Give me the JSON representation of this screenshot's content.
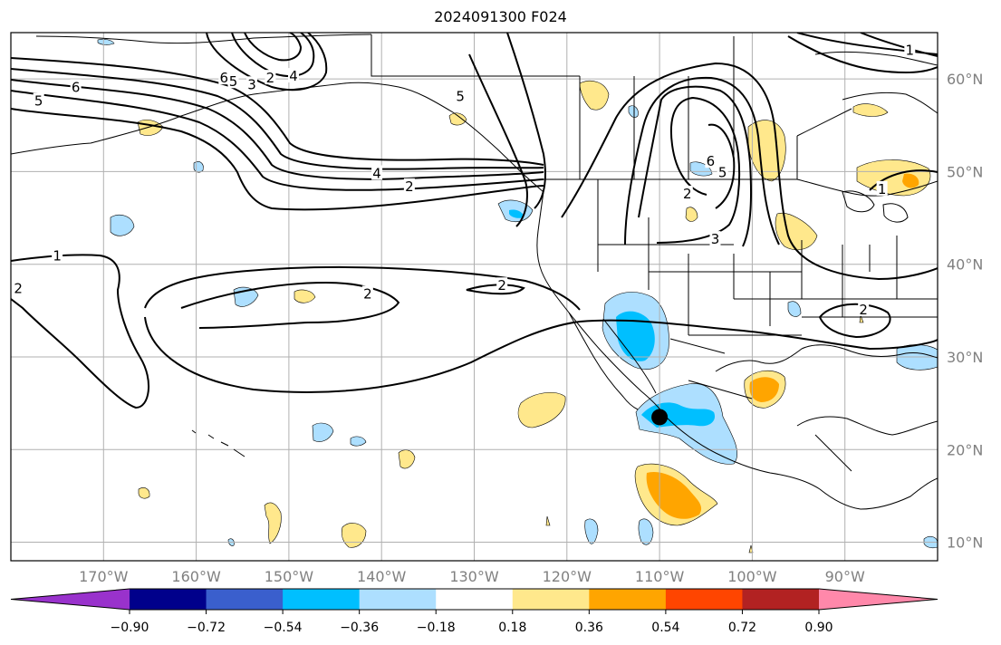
{
  "title": "2024091300 F024",
  "map": {
    "lon_range": [
      -180,
      -80
    ],
    "lat_range": [
      8,
      65
    ],
    "lon_ticks": [
      {
        "lon": -170,
        "label": "170°W"
      },
      {
        "lon": -160,
        "label": "160°W"
      },
      {
        "lon": -150,
        "label": "150°W"
      },
      {
        "lon": -140,
        "label": "140°W"
      },
      {
        "lon": -130,
        "label": "130°W"
      },
      {
        "lon": -120,
        "label": "120°W"
      },
      {
        "lon": -110,
        "label": "110°W"
      },
      {
        "lon": -100,
        "label": "100°W"
      },
      {
        "lon": -90,
        "label": "90°W"
      }
    ],
    "lat_ticks": [
      {
        "lat": 60,
        "label": "60°N"
      },
      {
        "lat": 50,
        "label": "50°N"
      },
      {
        "lat": 40,
        "label": "40°N"
      },
      {
        "lat": 30,
        "label": "30°N"
      },
      {
        "lat": 20,
        "label": "20°N"
      },
      {
        "lat": 10,
        "label": "10°N"
      }
    ],
    "grid": true,
    "marker": {
      "name": "storm-center-marker",
      "lon": -110,
      "lat": 23.5,
      "color": "#000000"
    }
  },
  "contour_labels": [
    {
      "text": "5",
      "lon": -177,
      "lat": 57.5
    },
    {
      "text": "6",
      "lon": -173,
      "lat": 59
    },
    {
      "text": "6",
      "lon": -157,
      "lat": 60
    },
    {
      "text": "5",
      "lon": -156,
      "lat": 59.6
    },
    {
      "text": "3",
      "lon": -154,
      "lat": 59.3
    },
    {
      "text": "2",
      "lon": -152,
      "lat": 60
    },
    {
      "text": "4",
      "lon": -149.5,
      "lat": 60.2
    },
    {
      "text": "5",
      "lon": -131.5,
      "lat": 58
    },
    {
      "text": "4",
      "lon": -140.5,
      "lat": 49.7
    },
    {
      "text": "2",
      "lon": -137,
      "lat": 48.3
    },
    {
      "text": "1",
      "lon": -175,
      "lat": 40.8
    },
    {
      "text": "2",
      "lon": -179.2,
      "lat": 37.3
    },
    {
      "text": "2",
      "lon": -141.5,
      "lat": 36.7
    },
    {
      "text": "2",
      "lon": -127,
      "lat": 37.6
    },
    {
      "text": "6",
      "lon": -104.5,
      "lat": 51
    },
    {
      "text": "5",
      "lon": -103.2,
      "lat": 49.8
    },
    {
      "text": "2",
      "lon": -107,
      "lat": 47.5
    },
    {
      "text": "3",
      "lon": -104,
      "lat": 42.6
    },
    {
      "text": "2",
      "lon": -88,
      "lat": 35
    },
    {
      "text": "1",
      "lon": -86,
      "lat": 48
    },
    {
      "text": "1",
      "lon": -83,
      "lat": 63
    }
  ],
  "colorbar": {
    "ticks": [
      "−0.90",
      "−0.72",
      "−0.54",
      "−0.36",
      "−0.18",
      "0.18",
      "0.36",
      "0.54",
      "0.72",
      "0.90"
    ],
    "colors": [
      "#9932CC",
      "#00008B",
      "#3A5FCD",
      "#00BFFF",
      "#ADDFFF",
      "#FFFFFF",
      "#FFE88C",
      "#FFA500",
      "#FF4500",
      "#B22222",
      "#FF88AA"
    ],
    "extend": "both"
  }
}
